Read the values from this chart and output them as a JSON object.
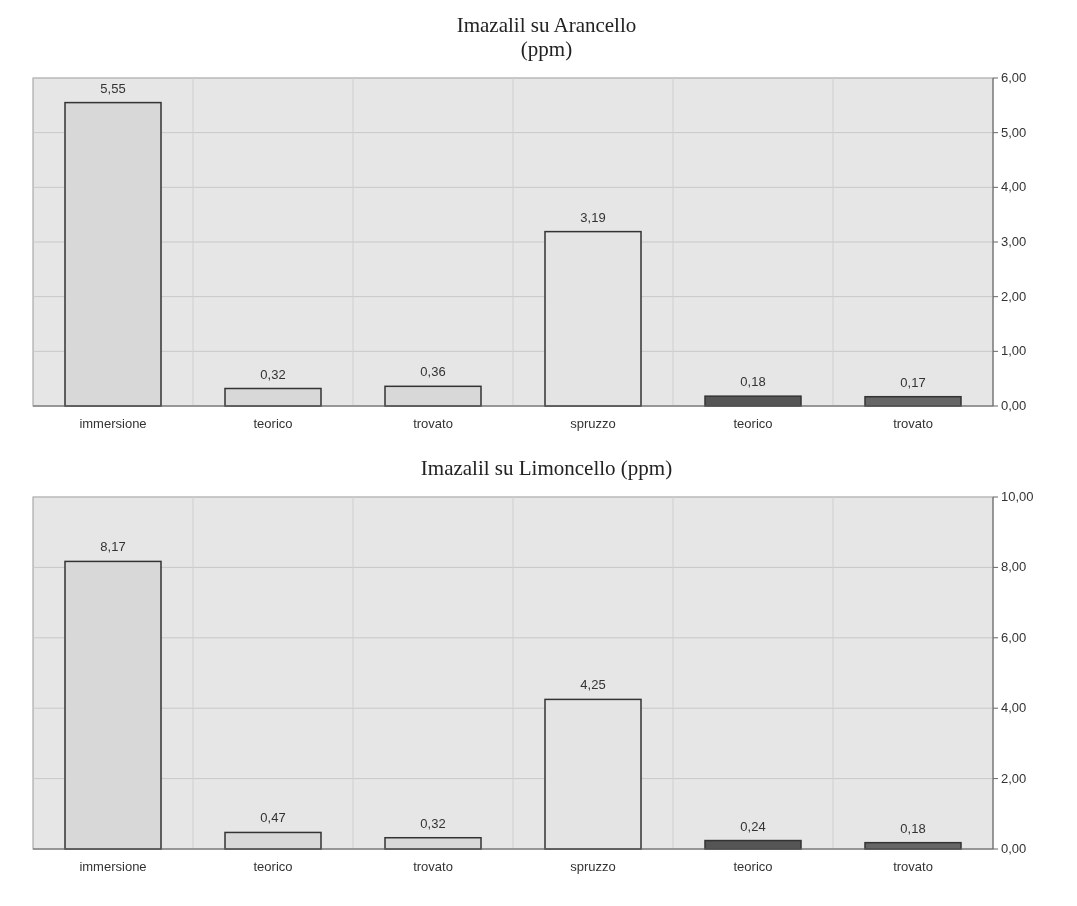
{
  "chart_data": [
    {
      "type": "bar",
      "title": "Imazalil su Arancello\n(ppm)",
      "categories": [
        "immersione",
        "teorico",
        "trovato",
        "spruzzo",
        "teorico",
        "trovato"
      ],
      "values": [
        5.55,
        0.32,
        0.36,
        3.19,
        0.18,
        0.17
      ],
      "colors": [
        "#d8d8d8",
        "#d8d8d8",
        "#d8d8d8",
        "#e4e4e4",
        "#555555",
        "#666666"
      ],
      "value_labels": [
        "5,55",
        "0,32",
        "0,36",
        "3,19",
        "0,18",
        "0,17"
      ],
      "ylim": [
        0,
        6
      ],
      "yticks": [
        {
          "value": 0,
          "label": "0,00"
        },
        {
          "value": 1,
          "label": "1,00"
        },
        {
          "value": 2,
          "label": "2,00"
        },
        {
          "value": 3,
          "label": "3,00"
        },
        {
          "value": 4,
          "label": "4,00"
        },
        {
          "value": 5,
          "label": "5,00"
        },
        {
          "value": 6,
          "label": "6,00"
        }
      ],
      "grid": true
    },
    {
      "type": "bar",
      "title": "Imazalil su Limoncello (ppm)",
      "categories": [
        "immersione",
        "teorico",
        "trovato",
        "spruzzo",
        "teorico",
        "trovato"
      ],
      "values": [
        8.17,
        0.47,
        0.32,
        4.25,
        0.24,
        0.18
      ],
      "colors": [
        "#d8d8d8",
        "#d8d8d8",
        "#d8d8d8",
        "#e4e4e4",
        "#555555",
        "#666666"
      ],
      "value_labels": [
        "8,17",
        "0,47",
        "0,32",
        "4,25",
        "0,24",
        "0,18"
      ],
      "ylim": [
        0,
        10
      ],
      "yticks": [
        {
          "value": 0,
          "label": "0,00"
        },
        {
          "value": 2,
          "label": "2,00"
        },
        {
          "value": 4,
          "label": "4,00"
        },
        {
          "value": 6,
          "label": "6,00"
        },
        {
          "value": 8,
          "label": "8,00"
        },
        {
          "value": 10,
          "label": "10,00"
        }
      ],
      "grid": true
    }
  ]
}
